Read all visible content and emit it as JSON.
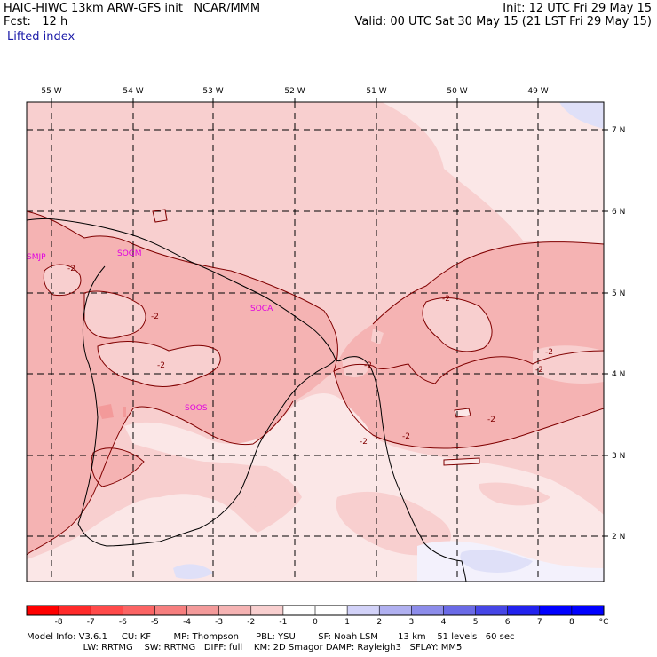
{
  "header": {
    "title": "HAIC-HIWC 13km ARW-GFS init   NCAR/MMM",
    "fcst": "Fcst:   12 h",
    "field": "Lifted index",
    "init": "Init: 12 UTC Fri 29 May 15",
    "valid": "Valid: 00 UTC Sat 30 May 15 (21 LST Fri 29 May 15)"
  },
  "map": {
    "lon_labels": [
      "55 W",
      "54 W",
      "53 W",
      "52 W",
      "51 W",
      "50 W",
      "49 W"
    ],
    "lat_labels": [
      "7 N",
      "6 N",
      "5 N",
      "4 N",
      "3 N",
      "2 N"
    ],
    "stations": [
      "SMJP",
      "SOGM",
      "SOCA",
      "SOOS"
    ],
    "contour_label": "-2",
    "colors": {
      "c_m3": "#f39a9a",
      "c_m2": "#f5b3b3",
      "c_m1": "#f8cfcf",
      "c_0": "#fbe7e7",
      "c_1": "#f3f1fc",
      "c_2": "#dfe0f8",
      "station": "#e000e0",
      "contour": "#800000"
    }
  },
  "colorbar": {
    "ticks": [
      "-8",
      "-7",
      "-6",
      "-5",
      "-4",
      "-3",
      "-2",
      "-1",
      "0",
      "1",
      "2",
      "3",
      "4",
      "5",
      "6",
      "7",
      "8"
    ],
    "unit": "°C",
    "colors": [
      "#ff0000",
      "#ff2a2a",
      "#ff4a4a",
      "#fb6464",
      "#f67e7e",
      "#f39a9a",
      "#f5b3b3",
      "#f8cfcf",
      "#ffffff",
      "#ffffff",
      "#d2d2f8",
      "#b0b0f0",
      "#8c8cea",
      "#6a6ae6",
      "#4646e6",
      "#2222ee",
      "#0000ff",
      "#0000ff"
    ]
  },
  "footer": {
    "line1": "Model Info: V3.6.1     CU: KF        MP: Thompson      PBL: YSU        SF: Noah LSM       13 km    51 levels   60 sec",
    "line2": "                    LW: RRTMG    SW: RRTMG   DIFF: full    KM: 2D Smagor DAMP: Rayleigh3   SFLAY: MM5"
  }
}
